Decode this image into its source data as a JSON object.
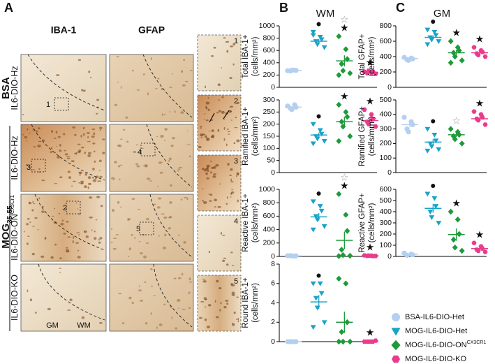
{
  "panel_a": {
    "label": "A",
    "columns": [
      "IBA-1",
      "GFAP"
    ],
    "group_bsa": "BSA",
    "group_mog": {
      "text": "MOG",
      "sub": "35-55"
    },
    "rows": [
      {
        "text": "IL6-DIO-Hz"
      },
      {
        "text": "IL6-DIO-Hz"
      },
      {
        "text": "IL6-DIO-ON",
        "sup": "Cx3Cr1"
      },
      {
        "text": "IL6-DIO-KO"
      }
    ],
    "box_labels": [
      "1",
      "4",
      "3",
      "2",
      "5"
    ],
    "inset_labels": [
      "1",
      "2",
      "3",
      "4",
      "5"
    ],
    "region_labels": [
      "GM",
      "WM"
    ]
  },
  "panel_b": {
    "label": "B",
    "title": "WM"
  },
  "panel_c": {
    "label": "C",
    "title": "GM"
  },
  "groups": [
    {
      "text": "BSA-IL6-DIO-Het",
      "color": "#b4d0f0",
      "marker": "circle"
    },
    {
      "text": "MOG-IL6-DIO-Het",
      "color": "#1aa3c8",
      "marker": "triangle-down"
    },
    {
      "text": "MOG-IL6-DIO-ON",
      "sup": "CX3CR1",
      "color": "#1f9a3a",
      "marker": "diamond"
    },
    {
      "text": "MOG-IL6-DIO-KO",
      "color": "#ea3b8d",
      "marker": "hexagon"
    }
  ],
  "chart_data": [
    {
      "type": "dotplot",
      "panel": "B",
      "ylabel": [
        "Total IBA-1+",
        "(cells/mm²)"
      ],
      "ylim": [
        0,
        1000
      ],
      "yticks": [
        0,
        200,
        400,
        600,
        800,
        1000
      ],
      "series": [
        {
          "values": [
            270,
            280,
            275,
            265,
            280
          ],
          "mean": 274,
          "sem": 3,
          "annotations": []
        },
        {
          "values": [
            900,
            820,
            780,
            750,
            700,
            650,
            850
          ],
          "mean": 750,
          "sem": 35,
          "annotations": [
            "●"
          ]
        },
        {
          "values": [
            830,
            620,
            460,
            380,
            270,
            230,
            200
          ],
          "mean": 430,
          "sem": 90,
          "annotations": [
            "☆",
            "★"
          ]
        },
        {
          "values": [
            250,
            240,
            260,
            230,
            270,
            220
          ],
          "mean": 245,
          "sem": 8,
          "annotations": [
            "★"
          ]
        }
      ]
    },
    {
      "type": "dotplot",
      "panel": "B",
      "ylabel": [
        "Ramified IBA-1+",
        "(cells/mm²)"
      ],
      "ylim": [
        0,
        300
      ],
      "yticks": [
        0,
        50,
        100,
        150,
        200,
        250,
        300
      ],
      "series": [
        {
          "values": [
            275,
            280,
            270,
            265,
            260
          ],
          "mean": 270,
          "sem": 3,
          "annotations": []
        },
        {
          "values": [
            200,
            175,
            160,
            150,
            140,
            130,
            120
          ],
          "mean": 155,
          "sem": 10,
          "annotations": [
            "●"
          ]
        },
        {
          "values": [
            280,
            250,
            230,
            210,
            190,
            150,
            130
          ],
          "mean": 210,
          "sem": 20,
          "annotations": [
            "★"
          ]
        },
        {
          "values": [
            260,
            240,
            220,
            210,
            200,
            190
          ],
          "mean": 215,
          "sem": 11,
          "annotations": [
            "★"
          ]
        }
      ]
    },
    {
      "type": "dotplot",
      "panel": "B",
      "ylabel": [
        "Reactive IBA-1+",
        "(cells/mm²)"
      ],
      "ylim": [
        0,
        1000
      ],
      "yticks": [
        0,
        200,
        400,
        600,
        800,
        1000
      ],
      "series": [
        {
          "values": [
            10,
            5,
            8,
            12,
            6
          ],
          "mean": 8,
          "sem": 1,
          "annotations": []
        },
        {
          "values": [
            820,
            750,
            680,
            600,
            550,
            450,
            400
          ],
          "mean": 590,
          "sem": 55,
          "annotations": [
            "●"
          ]
        },
        {
          "values": [
            930,
            620,
            380,
            100,
            20,
            10,
            5
          ],
          "mean": 240,
          "sem": 130,
          "annotations": [
            "☆",
            "★"
          ]
        },
        {
          "values": [
            15,
            10,
            5,
            8,
            12,
            6
          ],
          "mean": 10,
          "sem": 2,
          "annotations": [
            "★"
          ]
        }
      ]
    },
    {
      "type": "dotplot",
      "panel": "B",
      "ylabel": [
        "Round IBA-1+",
        "(cells/mm²)"
      ],
      "ylim": [
        0,
        8
      ],
      "yticks": [
        0,
        2,
        4,
        6,
        8
      ],
      "series": [
        {
          "values": [
            0,
            0,
            0,
            0,
            0
          ],
          "mean": 0,
          "sem": 0,
          "annotations": []
        },
        {
          "values": [
            6,
            6,
            5,
            4.5,
            3.5,
            2,
            1.5
          ],
          "mean": 4.1,
          "sem": 0.7,
          "annotations": [
            "●"
          ]
        },
        {
          "values": [
            6.5,
            6,
            2,
            1,
            0,
            0,
            0
          ],
          "mean": 2,
          "sem": 1.1,
          "annotations": []
        },
        {
          "values": [
            0,
            0,
            0,
            0,
            0,
            0.1
          ],
          "mean": 0.02,
          "sem": 0.02,
          "annotations": [
            "★"
          ]
        }
      ]
    },
    {
      "type": "dotplot",
      "panel": "C",
      "ylabel": [
        "Total GFAP+",
        "(cells/mm²)"
      ],
      "ylim": [
        0,
        800
      ],
      "yticks": [
        0,
        200,
        400,
        600,
        800
      ],
      "series": [
        {
          "values": [
            390,
            380,
            370,
            360,
            350
          ],
          "mean": 375,
          "sem": 7,
          "annotations": []
        },
        {
          "values": [
            750,
            720,
            680,
            650,
            620,
            600,
            560
          ],
          "mean": 650,
          "sem": 25,
          "annotations": [
            "●"
          ]
        },
        {
          "values": [
            600,
            520,
            480,
            450,
            400,
            350,
            320
          ],
          "mean": 450,
          "sem": 38,
          "annotations": [
            "★"
          ]
        },
        {
          "values": [
            520,
            480,
            460,
            440,
            420,
            400
          ],
          "mean": 450,
          "sem": 18,
          "annotations": [
            "★"
          ]
        }
      ]
    },
    {
      "type": "dotplot",
      "panel": "C",
      "ylabel": [
        "Ramified GFAP+",
        "(cells/mm²)"
      ],
      "ylim": [
        0,
        500
      ],
      "yticks": [
        0,
        100,
        200,
        300,
        400,
        500
      ],
      "series": [
        {
          "values": [
            380,
            350,
            330,
            300,
            280
          ],
          "mean": 330,
          "sem": 18,
          "annotations": []
        },
        {
          "values": [
            300,
            260,
            220,
            200,
            180,
            160,
            150
          ],
          "mean": 210,
          "sem": 20,
          "annotations": [
            "●"
          ]
        },
        {
          "values": [
            300,
            280,
            260,
            250,
            230,
            200
          ],
          "mean": 260,
          "sem": 15,
          "annotations": [
            "☆"
          ]
        },
        {
          "values": [
            420,
            400,
            380,
            370,
            360,
            330
          ],
          "mean": 370,
          "sem": 13,
          "annotations": [
            "★"
          ]
        }
      ]
    },
    {
      "type": "dotplot",
      "panel": "C",
      "ylabel": [
        "Reactive GFAP+",
        "(cells/mm²)"
      ],
      "ylim": [
        0,
        600
      ],
      "yticks": [
        0,
        100,
        200,
        300,
        400,
        500,
        600
      ],
      "series": [
        {
          "values": [
            30,
            20,
            15,
            10
          ],
          "mean": 20,
          "sem": 4,
          "annotations": []
        },
        {
          "values": [
            560,
            520,
            450,
            400,
            350,
            300
          ],
          "mean": 430,
          "sem": 40,
          "annotations": [
            "●"
          ]
        },
        {
          "values": [
            400,
            330,
            200,
            150,
            80,
            50
          ],
          "mean": 195,
          "sem": 55,
          "annotations": [
            "★"
          ]
        },
        {
          "values": [
            120,
            90,
            70,
            60,
            50,
            40
          ],
          "mean": 70,
          "sem": 12,
          "annotations": [
            "★"
          ]
        }
      ]
    }
  ]
}
